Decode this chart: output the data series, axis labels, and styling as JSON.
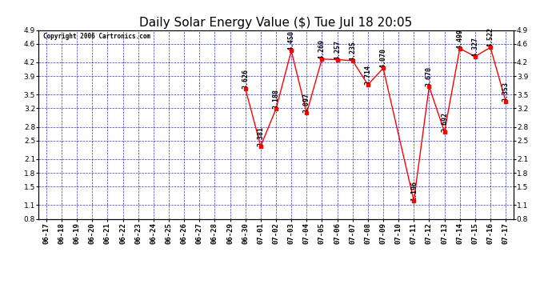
{
  "title": "Daily Solar Energy Value ($) Tue Jul 18 20:05",
  "copyright": "Copyright 2006 Cartronics.com",
  "dates": [
    "06-17",
    "06-18",
    "06-19",
    "06-20",
    "06-21",
    "06-22",
    "06-23",
    "06-24",
    "06-25",
    "06-26",
    "06-27",
    "06-28",
    "06-29",
    "06-30",
    "07-01",
    "07-02",
    "07-03",
    "07-04",
    "07-05",
    "07-06",
    "07-07",
    "07-08",
    "07-09",
    "07-10",
    "07-11",
    "07-12",
    "07-13",
    "07-14",
    "07-15",
    "07-16",
    "07-17"
  ],
  "values": [
    null,
    null,
    null,
    null,
    null,
    null,
    null,
    null,
    null,
    null,
    null,
    null,
    null,
    3.626,
    2.381,
    3.188,
    4.45,
    3.097,
    4.269,
    4.257,
    4.235,
    3.714,
    4.07,
    null,
    1.196,
    3.67,
    2.692,
    4.499,
    4.327,
    4.522,
    3.353
  ],
  "ylim": [
    0.8,
    4.9
  ],
  "yticks": [
    0.8,
    1.1,
    1.5,
    1.8,
    2.1,
    2.5,
    2.8,
    3.2,
    3.5,
    3.9,
    4.2,
    4.6,
    4.9
  ],
  "line_color": "red",
  "marker_color": "red",
  "grid_color": "#0000cc",
  "bg_color": "#ffffff",
  "plot_bg": "#ffffff",
  "title_fontsize": 11,
  "annotation_fontsize": 6.0,
  "label_fontsize": 6.5
}
